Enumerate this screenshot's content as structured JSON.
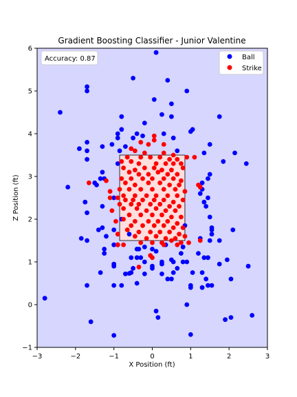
{
  "chart_data": {
    "type": "scatter",
    "title": "Gradient Boosting Classifier - Junior Valentine",
    "xlabel": "X Position (ft)",
    "ylabel": "Z Position (ft)",
    "xlim": [
      -3,
      3
    ],
    "ylim": [
      -1,
      6
    ],
    "xticks": [
      -3,
      -2,
      -1,
      0,
      1,
      2,
      3
    ],
    "yticks": [
      -1,
      0,
      1,
      2,
      3,
      4,
      5,
      6
    ],
    "grid": false,
    "legend_position": "top-right",
    "annotation": "Accuracy: 0.87",
    "background_color": "#d6d6ff",
    "strike_region": {
      "x": [
        -0.85,
        0.85
      ],
      "z": [
        1.5,
        3.5
      ],
      "fill": "#ffdede"
    },
    "series": [
      {
        "name": "Ball",
        "color": "#0000ff",
        "points": [
          [
            0.1,
            5.9
          ],
          [
            -1.7,
            5.1
          ],
          [
            -1.7,
            5.0
          ],
          [
            -2.4,
            4.5
          ],
          [
            -0.5,
            5.3
          ],
          [
            0.4,
            5.25
          ],
          [
            0.9,
            5.0
          ],
          [
            0.05,
            4.8
          ],
          [
            0.5,
            4.7
          ],
          [
            -0.8,
            4.4
          ],
          [
            0.25,
            4.45
          ],
          [
            0.5,
            4.4
          ],
          [
            1.75,
            4.4
          ],
          [
            -0.8,
            4.1
          ],
          [
            -0.2,
            4.25
          ],
          [
            1.05,
            4.1
          ],
          [
            1.0,
            4.05
          ],
          [
            -0.9,
            4.0
          ],
          [
            -0.4,
            4.0
          ],
          [
            0.3,
            4.0
          ],
          [
            -0.9,
            3.9
          ],
          [
            -0.5,
            3.9
          ],
          [
            -0.25,
            3.95
          ],
          [
            0.55,
            3.9
          ],
          [
            1.5,
            3.75
          ],
          [
            -1.7,
            3.8
          ],
          [
            -1.3,
            3.7
          ],
          [
            -1.05,
            3.75
          ],
          [
            -0.7,
            3.7
          ],
          [
            -1.9,
            3.65
          ],
          [
            -1.7,
            3.6
          ],
          [
            -0.85,
            3.6
          ],
          [
            0.65,
            3.6
          ],
          [
            1.35,
            3.55
          ],
          [
            2.15,
            3.55
          ],
          [
            -0.9,
            3.3
          ],
          [
            -1.7,
            3.4
          ],
          [
            1.85,
            3.35
          ],
          [
            2.45,
            3.3
          ],
          [
            -1.3,
            3.1
          ],
          [
            1.5,
            3.05
          ],
          [
            -1.25,
            2.95
          ],
          [
            -1.35,
            2.95
          ],
          [
            -1.45,
            2.8
          ],
          [
            1.45,
            2.95
          ],
          [
            -2.2,
            2.75
          ],
          [
            -1.5,
            2.85
          ],
          [
            1.3,
            2.85
          ],
          [
            -1.0,
            2.5
          ],
          [
            1.3,
            2.7
          ],
          [
            1.35,
            2.4
          ],
          [
            -1.75,
            2.4
          ],
          [
            1.4,
            2.3
          ],
          [
            -1.3,
            2.3
          ],
          [
            1.25,
            2.6
          ],
          [
            1.45,
            2.5
          ],
          [
            -1.7,
            2.15
          ],
          [
            -0.8,
            2.0
          ],
          [
            1.5,
            2.05
          ],
          [
            0.85,
            1.85
          ],
          [
            -1.3,
            1.8
          ],
          [
            1.55,
            1.8
          ],
          [
            -1.0,
            1.75
          ],
          [
            1.55,
            1.75
          ],
          [
            2.1,
            1.75
          ],
          [
            -1.4,
            1.75
          ],
          [
            -0.6,
            1.65
          ],
          [
            1.55,
            1.65
          ],
          [
            -1.2,
            1.6
          ],
          [
            1.5,
            1.5
          ],
          [
            1.75,
            1.5
          ],
          [
            -1.85,
            1.55
          ],
          [
            -1.7,
            1.5
          ],
          [
            1.25,
            1.55
          ],
          [
            -0.9,
            1.4
          ],
          [
            -1.0,
            1.4
          ],
          [
            0.35,
            1.4
          ],
          [
            -0.2,
            1.35
          ],
          [
            0.0,
            1.3
          ],
          [
            -1.25,
            1.3
          ],
          [
            0.8,
            1.35
          ],
          [
            -0.35,
            1.3
          ],
          [
            -0.4,
            1.3
          ],
          [
            -1.25,
            1.2
          ],
          [
            0.1,
            1.25
          ],
          [
            0.75,
            1.2
          ],
          [
            1.2,
            1.2
          ],
          [
            -0.55,
            1.1
          ],
          [
            -0.3,
            1.1
          ],
          [
            -0.4,
            1.1
          ],
          [
            1.35,
            1.1
          ],
          [
            1.45,
            1.1
          ],
          [
            1.95,
            1.05
          ],
          [
            0.5,
            1.05
          ],
          [
            0.8,
            1.0
          ],
          [
            -1.0,
            0.9
          ],
          [
            -0.2,
            1.0
          ],
          [
            0.25,
            1.0
          ],
          [
            0.55,
            1.0
          ],
          [
            0.9,
            1.0
          ],
          [
            1.75,
            0.95
          ],
          [
            -1.0,
            0.95
          ],
          [
            -0.5,
            0.85
          ],
          [
            0.0,
            0.85
          ],
          [
            0.0,
            0.9
          ],
          [
            0.25,
            0.95
          ],
          [
            0.65,
            0.85
          ],
          [
            2.5,
            0.9
          ],
          [
            -1.35,
            0.75
          ],
          [
            -0.55,
            0.75
          ],
          [
            -0.7,
            0.72
          ],
          [
            -0.6,
            0.73
          ],
          [
            -0.2,
            0.72
          ],
          [
            0.25,
            0.72
          ],
          [
            0.55,
            0.75
          ],
          [
            1.3,
            0.75
          ],
          [
            1.05,
            0.75
          ],
          [
            0.4,
            0.6
          ],
          [
            0.5,
            0.6
          ],
          [
            1.4,
            0.6
          ],
          [
            2.05,
            0.6
          ],
          [
            -1.0,
            0.45
          ],
          [
            -0.8,
            0.45
          ],
          [
            -0.4,
            0.5
          ],
          [
            -1.7,
            0.45
          ],
          [
            1.0,
            0.45
          ],
          [
            1.0,
            0.4
          ],
          [
            1.3,
            0.4
          ],
          [
            1.45,
            0.45
          ],
          [
            1.55,
            0.45
          ],
          [
            -2.8,
            0.15
          ],
          [
            0.1,
            -0.15
          ],
          [
            0.15,
            -0.3
          ],
          [
            0.9,
            0.0
          ],
          [
            -1.6,
            -0.4
          ],
          [
            1.9,
            -0.35
          ],
          [
            2.05,
            -0.3
          ],
          [
            2.6,
            -0.25
          ],
          [
            -1.0,
            -0.72
          ],
          [
            1.0,
            -0.7
          ]
        ]
      },
      {
        "name": "Strike",
        "color": "#ff0000",
        "points": [
          [
            0.05,
            3.95
          ],
          [
            -0.3,
            3.8
          ],
          [
            -0.1,
            3.75
          ],
          [
            0.05,
            3.85
          ],
          [
            0.3,
            3.75
          ],
          [
            -0.55,
            3.65
          ],
          [
            -0.45,
            3.6
          ],
          [
            -0.2,
            3.55
          ],
          [
            0.3,
            3.55
          ],
          [
            0.55,
            3.5
          ],
          [
            -0.65,
            3.45
          ],
          [
            -0.3,
            3.45
          ],
          [
            -0.05,
            3.45
          ],
          [
            0.2,
            3.45
          ],
          [
            0.45,
            3.4
          ],
          [
            0.65,
            3.4
          ],
          [
            0.9,
            3.45
          ],
          [
            1.1,
            3.45
          ],
          [
            -0.8,
            3.35
          ],
          [
            -0.55,
            3.35
          ],
          [
            -0.35,
            3.3
          ],
          [
            0.1,
            3.3
          ],
          [
            0.35,
            3.3
          ],
          [
            0.55,
            3.3
          ],
          [
            0.75,
            3.3
          ],
          [
            -0.75,
            3.2
          ],
          [
            -0.45,
            3.15
          ],
          [
            -0.2,
            3.2
          ],
          [
            0.05,
            3.2
          ],
          [
            0.25,
            3.15
          ],
          [
            0.5,
            3.15
          ],
          [
            0.8,
            3.2
          ],
          [
            -0.6,
            3.1
          ],
          [
            -0.35,
            3.05
          ],
          [
            -0.1,
            3.05
          ],
          [
            0.15,
            3.1
          ],
          [
            0.4,
            3.05
          ],
          [
            0.65,
            3.05
          ],
          [
            -0.8,
            2.95
          ],
          [
            -0.55,
            2.95
          ],
          [
            -0.25,
            2.95
          ],
          [
            0.0,
            2.95
          ],
          [
            0.3,
            2.95
          ],
          [
            0.55,
            2.95
          ],
          [
            0.75,
            2.9
          ],
          [
            -0.7,
            2.85
          ],
          [
            -0.45,
            2.8
          ],
          [
            -0.1,
            2.85
          ],
          [
            0.2,
            2.85
          ],
          [
            0.45,
            2.8
          ],
          [
            0.7,
            2.8
          ],
          [
            -1.65,
            2.85
          ],
          [
            -1.2,
            2.9
          ],
          [
            1.25,
            2.75
          ],
          [
            1.2,
            2.8
          ],
          [
            -0.85,
            2.7
          ],
          [
            -0.6,
            2.7
          ],
          [
            -0.3,
            2.7
          ],
          [
            0.0,
            2.7
          ],
          [
            0.3,
            2.7
          ],
          [
            0.6,
            2.7
          ],
          [
            0.85,
            2.65
          ],
          [
            -0.75,
            2.55
          ],
          [
            -0.45,
            2.55
          ],
          [
            -0.15,
            2.55
          ],
          [
            0.1,
            2.55
          ],
          [
            0.4,
            2.55
          ],
          [
            0.65,
            2.55
          ],
          [
            -1.1,
            2.5
          ],
          [
            -0.9,
            2.5
          ],
          [
            -0.7,
            2.45
          ],
          [
            -0.5,
            2.45
          ],
          [
            -0.25,
            2.45
          ],
          [
            0.05,
            2.45
          ],
          [
            0.3,
            2.45
          ],
          [
            0.55,
            2.4
          ],
          [
            0.8,
            2.45
          ],
          [
            -0.85,
            2.35
          ],
          [
            -0.55,
            2.35
          ],
          [
            -0.35,
            2.35
          ],
          [
            -0.05,
            2.35
          ],
          [
            0.2,
            2.35
          ],
          [
            0.45,
            2.3
          ],
          [
            0.7,
            2.3
          ],
          [
            -0.75,
            2.25
          ],
          [
            -0.4,
            2.25
          ],
          [
            -0.15,
            2.2
          ],
          [
            0.1,
            2.25
          ],
          [
            0.35,
            2.2
          ],
          [
            0.6,
            2.2
          ],
          [
            -1.05,
            2.2
          ],
          [
            -0.6,
            2.1
          ],
          [
            -0.3,
            2.1
          ],
          [
            0.0,
            2.1
          ],
          [
            0.25,
            2.1
          ],
          [
            0.5,
            2.05
          ],
          [
            0.75,
            2.05
          ],
          [
            -0.75,
            2.0
          ],
          [
            -0.45,
            1.95
          ],
          [
            -0.1,
            1.95
          ],
          [
            0.15,
            1.95
          ],
          [
            0.4,
            1.95
          ],
          [
            0.65,
            1.9
          ],
          [
            -0.95,
            1.95
          ],
          [
            -0.55,
            1.85
          ],
          [
            -0.25,
            1.85
          ],
          [
            0.05,
            1.85
          ],
          [
            0.3,
            1.85
          ],
          [
            0.55,
            1.8
          ],
          [
            0.8,
            1.8
          ],
          [
            -0.65,
            1.75
          ],
          [
            -0.35,
            1.7
          ],
          [
            -0.05,
            1.7
          ],
          [
            0.2,
            1.7
          ],
          [
            0.45,
            1.7
          ],
          [
            0.7,
            1.65
          ],
          [
            -0.9,
            1.65
          ],
          [
            -0.45,
            1.6
          ],
          [
            -0.15,
            1.55
          ],
          [
            0.1,
            1.6
          ],
          [
            0.35,
            1.55
          ],
          [
            0.6,
            1.55
          ],
          [
            0.85,
            1.6
          ],
          [
            -0.3,
            1.45
          ],
          [
            0.0,
            1.45
          ],
          [
            0.25,
            1.45
          ],
          [
            0.5,
            1.5
          ],
          [
            0.75,
            1.45
          ],
          [
            -0.9,
            1.4
          ],
          [
            -0.75,
            1.4
          ],
          [
            0.3,
            1.4
          ],
          [
            0.65,
            1.4
          ],
          [
            0.95,
            1.45
          ],
          [
            -0.05,
            1.15
          ],
          [
            0.0,
            1.1
          ],
          [
            -0.35,
            0.88
          ],
          [
            -1.1,
            2.65
          ],
          [
            1.25,
            1.5
          ]
        ]
      }
    ]
  }
}
